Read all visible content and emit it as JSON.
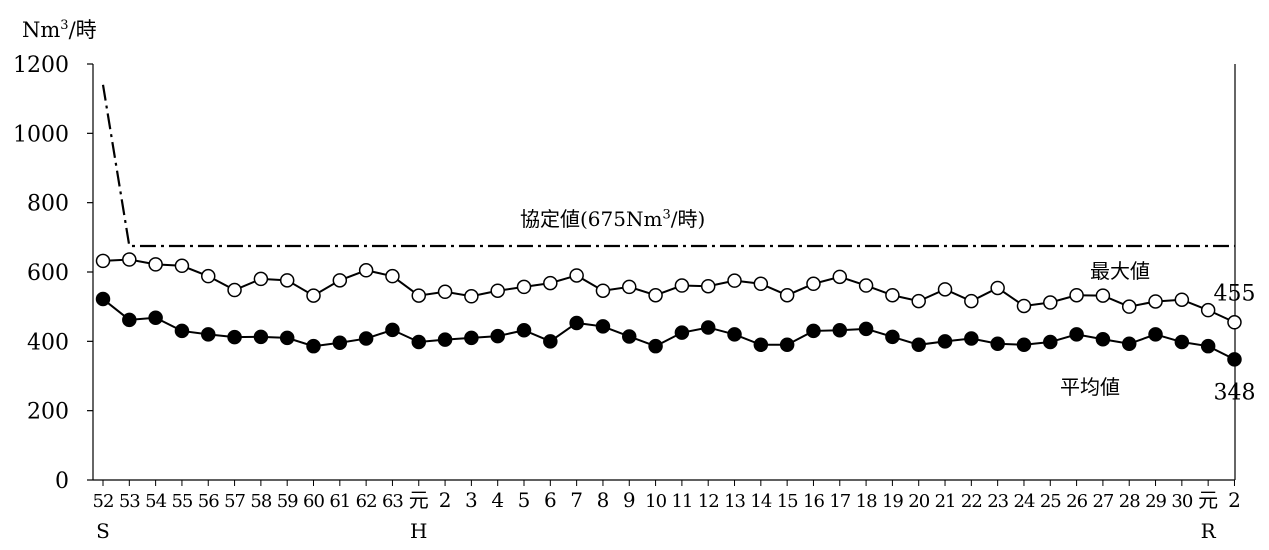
{
  "chart_data": {
    "type": "line",
    "unit_label": {
      "base": "Nm",
      "sup": "3",
      "suffix": "/時"
    },
    "ylim": [
      0,
      1200
    ],
    "yticks": [
      0,
      200,
      400,
      600,
      800,
      1000,
      1200
    ],
    "grid": false,
    "categories": [
      "52",
      "53",
      "54",
      "55",
      "56",
      "57",
      "58",
      "59",
      "60",
      "61",
      "62",
      "63",
      "元",
      "2",
      "3",
      "4",
      "5",
      "6",
      "7",
      "8",
      "9",
      "10",
      "11",
      "12",
      "13",
      "14",
      "15",
      "16",
      "17",
      "18",
      "19",
      "20",
      "21",
      "22",
      "23",
      "24",
      "25",
      "26",
      "27",
      "28",
      "29",
      "30",
      "元",
      "2"
    ],
    "era_labels": [
      {
        "index": 0,
        "label": "S"
      },
      {
        "index": 12,
        "label": "H"
      },
      {
        "index": 42,
        "label": "R"
      }
    ],
    "series": [
      {
        "name": "最大値",
        "marker": "open-circle",
        "values": [
          632,
          636,
          622,
          618,
          588,
          548,
          580,
          576,
          532,
          576,
          605,
          588,
          532,
          543,
          530,
          546,
          557,
          568,
          590,
          546,
          557,
          533,
          561,
          559,
          575,
          566,
          533,
          566,
          586,
          561,
          533,
          516,
          550,
          516,
          554,
          502,
          512,
          533,
          532,
          500,
          515,
          520,
          490,
          455
        ],
        "end_label": "455"
      },
      {
        "name": "平均値",
        "marker": "filled-circle",
        "values": [
          522,
          462,
          468,
          430,
          420,
          412,
          413,
          410,
          386,
          396,
          408,
          433,
          398,
          405,
          410,
          415,
          432,
          400,
          453,
          443,
          414,
          386,
          425,
          440,
          420,
          390,
          390,
          430,
          432,
          436,
          413,
          390,
          400,
          408,
          393,
          390,
          398,
          420,
          406,
          393,
          420,
          398,
          386,
          348
        ],
        "end_label": "348"
      },
      {
        "name": "協定値",
        "line_style": "dash-dot",
        "points": [
          [
            0,
            1140
          ],
          [
            1,
            675
          ],
          [
            43,
            675
          ]
        ]
      }
    ],
    "annotations": {
      "agreement": {
        "text": "協定値(675Nm",
        "sup": "3",
        "suffix": "/時)"
      },
      "max_label": "最大値",
      "avg_label": "平均値"
    }
  }
}
